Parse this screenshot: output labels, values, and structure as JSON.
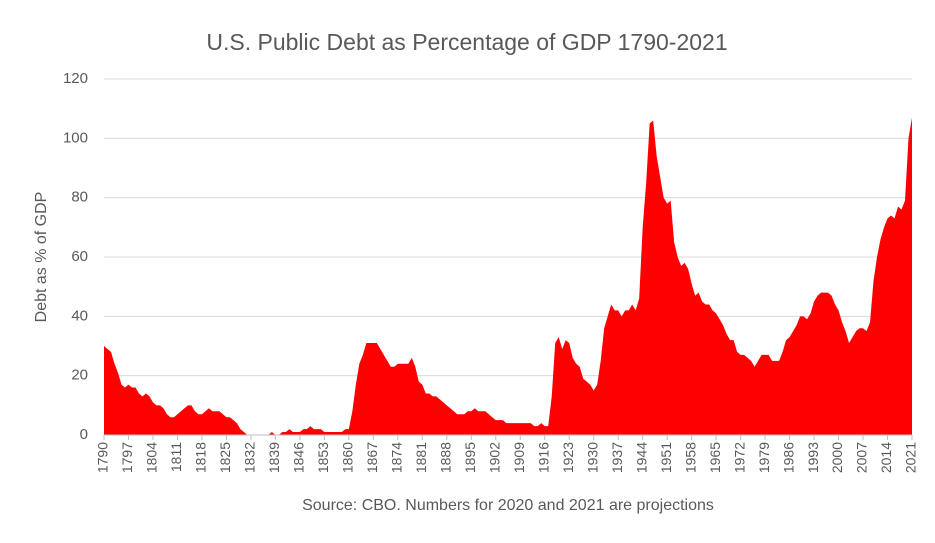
{
  "chart_data": {
    "type": "area",
    "title": "U.S. Public Debt as Percentage of GDP 1790-2021",
    "y_label": "Debt as % of GDP",
    "x_label": "Source: CBO. Numbers for 2020 and 2021 are projections",
    "color": "#ff0000",
    "grid": true,
    "x": [
      1790,
      1791,
      1792,
      1793,
      1794,
      1795,
      1796,
      1797,
      1798,
      1799,
      1800,
      1801,
      1802,
      1803,
      1804,
      1805,
      1806,
      1807,
      1808,
      1809,
      1810,
      1811,
      1812,
      1813,
      1814,
      1815,
      1816,
      1817,
      1818,
      1819,
      1820,
      1821,
      1822,
      1823,
      1824,
      1825,
      1826,
      1827,
      1828,
      1829,
      1830,
      1831,
      1832,
      1833,
      1834,
      1835,
      1836,
      1837,
      1838,
      1839,
      1840,
      1841,
      1842,
      1843,
      1844,
      1845,
      1846,
      1847,
      1848,
      1849,
      1850,
      1851,
      1852,
      1853,
      1854,
      1855,
      1856,
      1857,
      1858,
      1859,
      1860,
      1861,
      1862,
      1863,
      1864,
      1865,
      1866,
      1867,
      1868,
      1869,
      1870,
      1871,
      1872,
      1873,
      1874,
      1875,
      1876,
      1877,
      1878,
      1879,
      1880,
      1881,
      1882,
      1883,
      1884,
      1885,
      1886,
      1887,
      1888,
      1889,
      1890,
      1891,
      1892,
      1893,
      1894,
      1895,
      1896,
      1897,
      1898,
      1899,
      1900,
      1901,
      1902,
      1903,
      1904,
      1905,
      1906,
      1907,
      1908,
      1909,
      1910,
      1911,
      1912,
      1913,
      1914,
      1915,
      1916,
      1917,
      1918,
      1919,
      1920,
      1921,
      1922,
      1923,
      1924,
      1925,
      1926,
      1927,
      1928,
      1929,
      1930,
      1931,
      1932,
      1933,
      1934,
      1935,
      1936,
      1937,
      1938,
      1939,
      1940,
      1941,
      1942,
      1943,
      1944,
      1945,
      1946,
      1947,
      1948,
      1949,
      1950,
      1951,
      1952,
      1953,
      1954,
      1955,
      1956,
      1957,
      1958,
      1959,
      1960,
      1961,
      1962,
      1963,
      1964,
      1965,
      1966,
      1967,
      1968,
      1969,
      1970,
      1971,
      1972,
      1973,
      1974,
      1975,
      1976,
      1977,
      1978,
      1979,
      1980,
      1981,
      1982,
      1983,
      1984,
      1985,
      1986,
      1987,
      1988,
      1989,
      1990,
      1991,
      1992,
      1993,
      1994,
      1995,
      1996,
      1997,
      1998,
      1999,
      2000,
      2001,
      2002,
      2003,
      2004,
      2005,
      2006,
      2007,
      2008,
      2009,
      2010,
      2011,
      2012,
      2013,
      2014,
      2015,
      2016,
      2017,
      2018,
      2019,
      2020,
      2021
    ],
    "values": [
      30,
      29,
      28,
      24,
      21,
      17,
      16,
      17,
      16,
      16,
      14,
      13,
      14,
      13,
      11,
      10,
      10,
      9,
      7,
      6,
      6,
      7,
      8,
      9,
      10,
      10,
      8,
      7,
      7,
      8,
      9,
      8,
      8,
      8,
      7,
      6,
      6,
      5,
      4,
      2,
      1,
      0,
      0,
      0,
      0,
      0,
      0,
      0,
      1,
      0,
      0,
      1,
      1,
      2,
      1,
      1,
      1,
      2,
      2,
      3,
      2,
      2,
      2,
      1,
      1,
      1,
      1,
      1,
      1,
      2,
      2,
      8,
      17,
      24,
      27,
      31,
      31,
      31,
      31,
      29,
      27,
      25,
      23,
      23,
      24,
      24,
      24,
      24,
      26,
      23,
      18,
      17,
      14,
      14,
      13,
      13,
      12,
      11,
      10,
      9,
      8,
      7,
      7,
      7,
      8,
      8,
      9,
      8,
      8,
      8,
      7,
      6,
      5,
      5,
      5,
      4,
      4,
      4,
      4,
      4,
      4,
      4,
      4,
      3,
      3,
      4,
      3,
      3,
      13,
      31,
      33,
      29,
      32,
      31,
      26,
      24,
      23,
      19,
      18,
      17,
      15,
      17,
      25,
      36,
      40,
      44,
      42,
      42,
      40,
      42,
      42,
      44,
      42,
      46,
      70,
      85,
      105,
      106,
      94,
      87,
      80,
      78,
      79,
      65,
      60,
      57,
      58,
      56,
      51,
      47,
      48,
      45,
      44,
      44,
      42,
      41,
      39,
      37,
      34,
      32,
      32,
      28,
      27,
      27,
      26,
      25,
      23,
      25,
      27,
      27,
      27,
      25,
      25,
      25,
      28,
      32,
      33,
      35,
      37,
      40,
      40,
      39,
      41,
      45,
      47,
      48,
      48,
      48,
      47,
      44,
      42,
      38,
      35,
      31,
      33,
      35,
      36,
      36,
      35,
      38,
      52,
      60,
      66,
      70,
      73,
      74,
      73,
      77,
      76,
      79,
      100,
      107
    ],
    "xlim": [
      1790,
      2021
    ],
    "xticks": [
      1790,
      1797,
      1804,
      1811,
      1818,
      1825,
      1832,
      1839,
      1846,
      1853,
      1860,
      1867,
      1874,
      1881,
      1888,
      1895,
      1902,
      1909,
      1916,
      1923,
      1930,
      1937,
      1944,
      1951,
      1958,
      1965,
      1972,
      1979,
      1986,
      1993,
      2000,
      2007,
      2014,
      2021
    ],
    "ylim": [
      0,
      120
    ],
    "yticks": [
      0,
      20,
      40,
      60,
      80,
      100,
      120
    ]
  }
}
